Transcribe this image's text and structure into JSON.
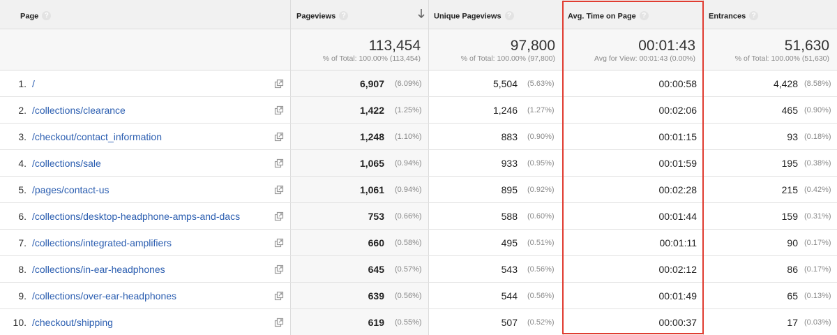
{
  "header": {
    "page": "Page",
    "pageviews": "Pageviews",
    "unique_pageviews": "Unique Pageviews",
    "avg_time": "Avg. Time on Page",
    "entrances": "Entrances",
    "help": "?"
  },
  "totals": {
    "pageviews": "113,454",
    "pageviews_sub": "% of Total: 100.00% (113,454)",
    "unique_pageviews": "97,800",
    "unique_pageviews_sub": "% of Total: 100.00% (97,800)",
    "avg_time": "00:01:43",
    "avg_time_sub": "Avg for View: 00:01:43 (0.00%)",
    "entrances": "51,630",
    "entrances_sub": "% of Total: 100.00% (51,630)"
  },
  "rows": [
    {
      "rank": "1.",
      "page": "/",
      "pv": "6,907",
      "pv_pct": "(6.09%)",
      "upv": "5,504",
      "upv_pct": "(5.63%)",
      "avg": "00:00:58",
      "ent": "4,428",
      "ent_pct": "(8.58%)"
    },
    {
      "rank": "2.",
      "page": "/collections/clearance",
      "pv": "1,422",
      "pv_pct": "(1.25%)",
      "upv": "1,246",
      "upv_pct": "(1.27%)",
      "avg": "00:02:06",
      "ent": "465",
      "ent_pct": "(0.90%)"
    },
    {
      "rank": "3.",
      "page": "/checkout/contact_information",
      "pv": "1,248",
      "pv_pct": "(1.10%)",
      "upv": "883",
      "upv_pct": "(0.90%)",
      "avg": "00:01:15",
      "ent": "93",
      "ent_pct": "(0.18%)"
    },
    {
      "rank": "4.",
      "page": "/collections/sale",
      "pv": "1,065",
      "pv_pct": "(0.94%)",
      "upv": "933",
      "upv_pct": "(0.95%)",
      "avg": "00:01:59",
      "ent": "195",
      "ent_pct": "(0.38%)"
    },
    {
      "rank": "5.",
      "page": "/pages/contact-us",
      "pv": "1,061",
      "pv_pct": "(0.94%)",
      "upv": "895",
      "upv_pct": "(0.92%)",
      "avg": "00:02:28",
      "ent": "215",
      "ent_pct": "(0.42%)"
    },
    {
      "rank": "6.",
      "page": "/collections/desktop-headphone-amps-and-dacs",
      "pv": "753",
      "pv_pct": "(0.66%)",
      "upv": "588",
      "upv_pct": "(0.60%)",
      "avg": "00:01:44",
      "ent": "159",
      "ent_pct": "(0.31%)"
    },
    {
      "rank": "7.",
      "page": "/collections/integrated-amplifiers",
      "pv": "660",
      "pv_pct": "(0.58%)",
      "upv": "495",
      "upv_pct": "(0.51%)",
      "avg": "00:01:11",
      "ent": "90",
      "ent_pct": "(0.17%)"
    },
    {
      "rank": "8.",
      "page": "/collections/in-ear-headphones",
      "pv": "645",
      "pv_pct": "(0.57%)",
      "upv": "543",
      "upv_pct": "(0.56%)",
      "avg": "00:02:12",
      "ent": "86",
      "ent_pct": "(0.17%)"
    },
    {
      "rank": "9.",
      "page": "/collections/over-ear-headphones",
      "pv": "639",
      "pv_pct": "(0.56%)",
      "upv": "544",
      "upv_pct": "(0.56%)",
      "avg": "00:01:49",
      "ent": "65",
      "ent_pct": "(0.13%)"
    },
    {
      "rank": "10.",
      "page": "/checkout/shipping",
      "pv": "619",
      "pv_pct": "(0.55%)",
      "upv": "507",
      "upv_pct": "(0.52%)",
      "avg": "00:00:37",
      "ent": "17",
      "ent_pct": "(0.03%)"
    }
  ],
  "icons": {
    "help": "help-icon",
    "sort": "sort-descending-icon",
    "open_page": "external-link-icon"
  },
  "colors": {
    "link": "#2a5db0",
    "highlight": "#e03c31"
  }
}
